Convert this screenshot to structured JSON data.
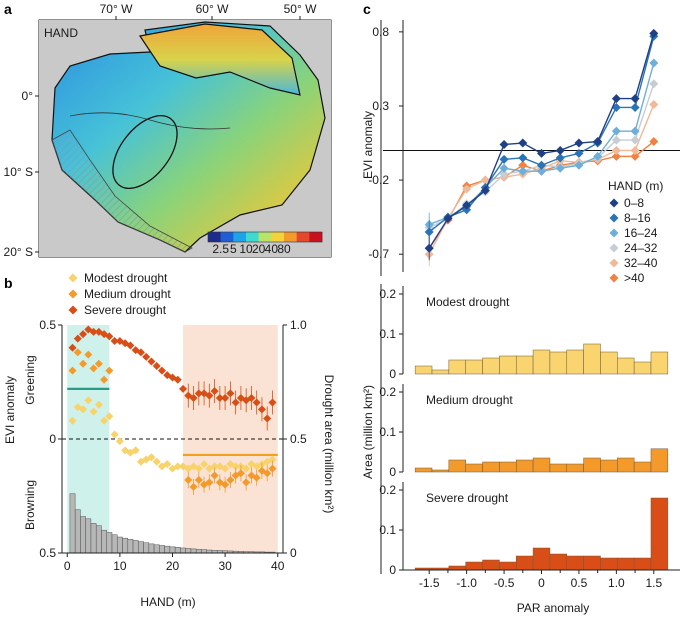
{
  "panels": {
    "a": {
      "label": "a",
      "map_label": "HAND",
      "top_ticks": [
        "70° W",
        "60° W",
        "50° W"
      ],
      "left_ticks": [
        "0°",
        "10° S",
        "20° S"
      ],
      "colorbar_ticks": [
        "2.5",
        "5",
        "10",
        "20",
        "40",
        "80"
      ],
      "colorbar_colors": [
        "#1d2b8f",
        "#1f5fd6",
        "#1ea3e8",
        "#40d9d0",
        "#b8e46a",
        "#f3d23a",
        "#f39a2b",
        "#e4472a",
        "#c8101e"
      ]
    },
    "b": {
      "label": "b",
      "legend": [
        "Modest drought",
        "Medium drought",
        "Severe drought"
      ],
      "xlabel": "HAND (m)",
      "ylabel_left": "EVI anomaly",
      "ylabel_right": "Drought area (million km²)",
      "greening_label": "Greening",
      "browning_label": "Browning"
    },
    "c": {
      "label": "c",
      "ylabel_top": "EVI anomaly",
      "ylabel_bottom": "Area (million km²)",
      "xlabel": "PAR anomaly",
      "legend_title": "HAND (m)",
      "sub_titles": [
        "Modest drought",
        "Medium drought",
        "Severe drought"
      ]
    }
  },
  "chart_data": [
    {
      "type": "scatter",
      "panel": "b",
      "xlabel": "HAND (m)",
      "ylabel": "EVI anomaly",
      "ylabel_right": "Drought area (million km²)",
      "xlim": [
        -1,
        41
      ],
      "ylim": [
        -0.5,
        0.5
      ],
      "y_ticks": [
        "0.5",
        "0",
        "0.5"
      ],
      "y_right_ticks": [
        "1.0",
        "0.5",
        "0"
      ],
      "x_ticks": [
        0,
        10,
        20,
        30,
        40
      ],
      "shaded_ranges": [
        {
          "x": [
            0,
            8
          ],
          "color": "#bdeee4"
        },
        {
          "x": [
            22,
            40
          ],
          "color": "#f8d9c5"
        }
      ],
      "reference_lines": [
        {
          "x": [
            0,
            8
          ],
          "y": 0.22,
          "color": "#2a9c86"
        },
        {
          "x": [
            22,
            40
          ],
          "y": -0.07,
          "color": "#f0a020"
        }
      ],
      "series": [
        {
          "name": "Modest drought",
          "color": "#f8d26a",
          "x": [
            1,
            2,
            3,
            4,
            5,
            6,
            7,
            8,
            9,
            10,
            11,
            12,
            13,
            14,
            15,
            16,
            17,
            18,
            19,
            20,
            21,
            22,
            23,
            24,
            25,
            26,
            27,
            28,
            29,
            30,
            31,
            32,
            33,
            34,
            35,
            36,
            37,
            38,
            39
          ],
          "y": [
            0.08,
            0.14,
            0.13,
            0.17,
            0.12,
            0.15,
            0.08,
            0.1,
            0.02,
            -0.01,
            -0.05,
            -0.06,
            -0.05,
            -0.1,
            -0.09,
            -0.08,
            -0.1,
            -0.12,
            -0.11,
            -0.13,
            -0.12,
            -0.12,
            -0.13,
            -0.12,
            -0.13,
            -0.11,
            -0.13,
            -0.12,
            -0.12,
            -0.13,
            -0.11,
            -0.12,
            -0.12,
            -0.13,
            -0.11,
            -0.12,
            -0.11,
            -0.1,
            -0.09
          ]
        },
        {
          "name": "Medium drought",
          "color": "#f39a2b",
          "x": [
            1,
            2,
            3,
            4,
            5,
            6,
            7,
            8,
            23,
            24,
            25,
            26,
            27,
            28,
            29,
            30,
            31,
            32,
            33,
            34,
            35,
            36,
            37,
            38,
            39
          ],
          "y": [
            0.3,
            0.38,
            0.33,
            0.37,
            0.31,
            0.33,
            0.26,
            0.3,
            -0.18,
            -0.21,
            -0.18,
            -0.2,
            -0.19,
            -0.16,
            -0.19,
            -0.2,
            -0.18,
            -0.16,
            -0.15,
            -0.19,
            -0.16,
            -0.17,
            -0.14,
            -0.15,
            -0.13
          ]
        },
        {
          "name": "Severe drought",
          "color": "#d94e16",
          "x": [
            1,
            2,
            3,
            4,
            5,
            6,
            7,
            8,
            9,
            10,
            11,
            12,
            13,
            14,
            15,
            16,
            17,
            18,
            19,
            20,
            21,
            22,
            23,
            24,
            25,
            26,
            27,
            28,
            29,
            30,
            31,
            32,
            33,
            34,
            35,
            36,
            37,
            38,
            39
          ],
          "y": [
            0.4,
            0.44,
            0.46,
            0.48,
            0.47,
            0.47,
            0.46,
            0.45,
            0.43,
            0.43,
            0.42,
            0.41,
            0.39,
            0.38,
            0.36,
            0.34,
            0.32,
            0.3,
            0.28,
            0.27,
            0.26,
            0.22,
            0.19,
            0.18,
            0.2,
            0.2,
            0.19,
            0.21,
            0.18,
            0.18,
            0.2,
            0.16,
            0.18,
            0.17,
            0.18,
            0.16,
            0.13,
            0.09,
            0.16
          ]
        }
      ],
      "bars": {
        "name": "Drought area",
        "color": "#b7b7b7",
        "x": [
          1,
          2,
          3,
          4,
          5,
          6,
          7,
          8,
          9,
          10,
          11,
          12,
          13,
          14,
          15,
          16,
          17,
          18,
          19,
          20,
          21,
          22,
          23,
          24,
          25,
          26,
          27,
          28,
          29,
          30,
          31,
          32,
          33,
          34,
          35,
          36,
          37,
          38,
          39
        ],
        "values": [
          0.26,
          0.19,
          0.16,
          0.15,
          0.13,
          0.12,
          0.1,
          0.09,
          0.08,
          0.07,
          0.065,
          0.06,
          0.055,
          0.05,
          0.045,
          0.04,
          0.036,
          0.033,
          0.03,
          0.027,
          0.025,
          0.022,
          0.02,
          0.018,
          0.016,
          0.015,
          0.013,
          0.012,
          0.011,
          0.01,
          0.009,
          0.008,
          0.007,
          0.006,
          0.006,
          0.005,
          0.005,
          0.004,
          0.004
        ]
      }
    },
    {
      "type": "line",
      "panel": "c-top",
      "xlabel": "",
      "ylabel": "EVI anomaly",
      "xlim": [
        -1.85,
        1.85
      ],
      "ylim": [
        -0.82,
        0.88
      ],
      "y_ticks": [
        0.8,
        0.3,
        -0.2,
        -0.7
      ],
      "y_tick_labels": [
        "0.8",
        "0.3",
        "-0.2",
        "-0.7"
      ],
      "hline": 0.0,
      "x": [
        -1.5,
        -1.25,
        -1.0,
        -0.75,
        -0.5,
        -0.25,
        0.0,
        0.25,
        0.5,
        0.75,
        1.0,
        1.25,
        1.5
      ],
      "series": [
        {
          "name": "0–8",
          "color": "#1f3f86",
          "values": [
            -0.66,
            -0.46,
            -0.37,
            -0.27,
            0.04,
            0.05,
            -0.02,
            0.0,
            0.05,
            0.06,
            0.35,
            0.35,
            0.79
          ]
        },
        {
          "name": "8–16",
          "color": "#2a73b7",
          "values": [
            -0.55,
            -0.45,
            -0.4,
            -0.25,
            -0.06,
            -0.05,
            -0.1,
            -0.05,
            -0.02,
            0.05,
            0.29,
            0.29,
            0.77
          ]
        },
        {
          "name": "16–24",
          "color": "#6faed8",
          "values": [
            -0.5,
            -0.45,
            -0.38,
            -0.25,
            -0.12,
            -0.14,
            -0.14,
            -0.12,
            -0.1,
            -0.04,
            0.13,
            0.13,
            0.59
          ]
        },
        {
          "name": "24–32",
          "color": "#c6cdd4",
          "values": [
            -0.52,
            -0.46,
            -0.36,
            -0.28,
            -0.16,
            -0.14,
            -0.1,
            -0.11,
            -0.09,
            -0.05,
            0.07,
            0.07,
            0.45
          ]
        },
        {
          "name": "32–40",
          "color": "#efb99a",
          "values": [
            -0.7,
            -0.46,
            -0.26,
            -0.2,
            -0.18,
            -0.16,
            -0.12,
            -0.07,
            -0.08,
            -0.06,
            0.0,
            0.0,
            0.31
          ]
        },
        {
          "name": ">40",
          "color": "#f08242",
          "values": [
            -0.66,
            -0.47,
            -0.24,
            -0.2,
            -0.18,
            -0.1,
            -0.14,
            -0.1,
            -0.08,
            -0.07,
            -0.04,
            -0.04,
            0.06
          ]
        }
      ]
    },
    {
      "type": "bar",
      "panel": "c-bottom",
      "xlabel": "PAR anomaly",
      "ylabel": "Area (million km²)",
      "x_tick_labels": [
        "-1.5",
        "-1.0",
        "-0.5",
        "0",
        "0.5",
        "1.0",
        "1.5"
      ],
      "x_ticks": [
        -1.5,
        -1.0,
        -0.5,
        0.0,
        0.5,
        1.0,
        1.5
      ],
      "bin_centers": [
        -1.575,
        -1.35,
        -1.125,
        -0.9,
        -0.675,
        -0.45,
        -0.225,
        0.0,
        0.225,
        0.45,
        0.675,
        0.9,
        1.125,
        1.35,
        1.575
      ],
      "y_ticks": [
        0,
        0.1,
        0.2
      ],
      "y_tick_labels": [
        "0",
        "0.1",
        "0.2"
      ],
      "series": [
        {
          "name": "Modest drought",
          "color": "#f9d46f",
          "values": [
            0.02,
            0.01,
            0.035,
            0.035,
            0.04,
            0.045,
            0.045,
            0.06,
            0.055,
            0.06,
            0.075,
            0.055,
            0.04,
            0.03,
            0.055
          ]
        },
        {
          "name": "Medium drought",
          "color": "#f39a2b",
          "values": [
            0.01,
            0.005,
            0.03,
            0.02,
            0.025,
            0.025,
            0.03,
            0.035,
            0.02,
            0.02,
            0.035,
            0.03,
            0.035,
            0.025,
            0.058
          ]
        },
        {
          "name": "Severe drought",
          "color": "#d94e16",
          "values": [
            0.005,
            0.005,
            0.01,
            0.02,
            0.025,
            0.02,
            0.035,
            0.055,
            0.04,
            0.035,
            0.035,
            0.03,
            0.03,
            0.03,
            0.18
          ]
        }
      ]
    }
  ]
}
